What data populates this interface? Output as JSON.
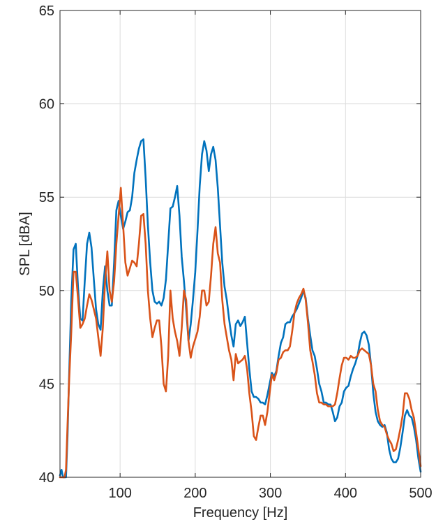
{
  "chart_data": {
    "type": "line",
    "title": "",
    "xlabel": "Frequency [Hz]",
    "ylabel": "SPL [dBA]",
    "xlim": [
      20,
      500
    ],
    "ylim": [
      40,
      65
    ],
    "x_ticks": [
      100,
      200,
      300,
      400,
      500
    ],
    "y_ticks": [
      40,
      45,
      50,
      55,
      60,
      65
    ],
    "x_tick_labels": [
      "100",
      "200",
      "300",
      "400",
      "500"
    ],
    "y_tick_labels": [
      "40",
      "45",
      "50",
      "55",
      "60",
      "65"
    ],
    "grid": true,
    "legend": "none",
    "series": [
      {
        "color": "#0072BD",
        "points": [
          [
            20,
            40.1
          ],
          [
            22,
            40.4
          ],
          [
            24,
            40.0
          ],
          [
            26,
            40.0
          ],
          [
            28,
            40.0
          ],
          [
            30,
            42.2
          ],
          [
            32,
            45.2
          ],
          [
            35,
            49.5
          ],
          [
            38,
            52.2
          ],
          [
            41,
            52.5
          ],
          [
            44,
            50.2
          ],
          [
            47,
            48.5
          ],
          [
            50,
            48.4
          ],
          [
            53,
            50.5
          ],
          [
            56,
            52.5
          ],
          [
            59,
            53.1
          ],
          [
            62,
            52.3
          ],
          [
            65,
            50.6
          ],
          [
            68,
            49.0
          ],
          [
            71,
            48.2
          ],
          [
            74,
            47.9
          ],
          [
            77,
            50.0
          ],
          [
            80,
            51.3
          ],
          [
            83,
            50.0
          ],
          [
            86,
            49.2
          ],
          [
            89,
            49.2
          ],
          [
            92,
            51.5
          ],
          [
            95,
            54.3
          ],
          [
            98,
            54.8
          ],
          [
            101,
            54.0
          ],
          [
            104,
            53.3
          ],
          [
            107,
            53.7
          ],
          [
            110,
            54.2
          ],
          [
            113,
            54.3
          ],
          [
            116,
            55.0
          ],
          [
            119,
            56.3
          ],
          [
            122,
            57.0
          ],
          [
            125,
            57.6
          ],
          [
            128,
            58.0
          ],
          [
            131,
            58.1
          ],
          [
            134,
            56.0
          ],
          [
            137,
            53.5
          ],
          [
            140,
            51.5
          ],
          [
            143,
            50.0
          ],
          [
            146,
            49.4
          ],
          [
            149,
            49.3
          ],
          [
            152,
            49.4
          ],
          [
            155,
            49.2
          ],
          [
            158,
            49.6
          ],
          [
            161,
            50.6
          ],
          [
            164,
            52.5
          ],
          [
            167,
            54.4
          ],
          [
            170,
            54.5
          ],
          [
            173,
            55.0
          ],
          [
            176,
            55.6
          ],
          [
            179,
            54.0
          ],
          [
            182,
            51.8
          ],
          [
            185,
            50.5
          ],
          [
            188,
            49.0
          ],
          [
            191,
            47.3
          ],
          [
            194,
            48.2
          ],
          [
            197,
            49.5
          ],
          [
            200,
            51.0
          ],
          [
            203,
            53.2
          ],
          [
            206,
            55.6
          ],
          [
            209,
            57.3
          ],
          [
            212,
            58.0
          ],
          [
            215,
            57.5
          ],
          [
            218,
            56.4
          ],
          [
            221,
            57.3
          ],
          [
            224,
            57.7
          ],
          [
            227,
            57.0
          ],
          [
            230,
            55.5
          ],
          [
            233,
            53.5
          ],
          [
            236,
            51.5
          ],
          [
            239,
            50.2
          ],
          [
            242,
            49.5
          ],
          [
            245,
            48.5
          ],
          [
            248,
            47.6
          ],
          [
            251,
            47.0
          ],
          [
            254,
            48.2
          ],
          [
            257,
            48.4
          ],
          [
            260,
            48.1
          ],
          [
            263,
            48.3
          ],
          [
            266,
            48.6
          ],
          [
            269,
            47.2
          ],
          [
            272,
            45.8
          ],
          [
            275,
            44.6
          ],
          [
            278,
            44.3
          ],
          [
            281,
            44.3
          ],
          [
            284,
            44.2
          ],
          [
            287,
            44.0
          ],
          [
            290,
            44.0
          ],
          [
            293,
            43.9
          ],
          [
            296,
            44.4
          ],
          [
            299,
            45.0
          ],
          [
            302,
            45.6
          ],
          [
            305,
            45.4
          ],
          [
            308,
            45.7
          ],
          [
            311,
            46.5
          ],
          [
            314,
            47.2
          ],
          [
            317,
            47.5
          ],
          [
            320,
            48.2
          ],
          [
            323,
            48.3
          ],
          [
            326,
            48.3
          ],
          [
            329,
            48.6
          ],
          [
            332,
            48.8
          ],
          [
            335,
            49.0
          ],
          [
            338,
            49.3
          ],
          [
            341,
            49.6
          ],
          [
            344,
            50.0
          ],
          [
            347,
            49.6
          ],
          [
            350,
            48.5
          ],
          [
            353,
            47.6
          ],
          [
            356,
            46.8
          ],
          [
            359,
            46.5
          ],
          [
            362,
            45.8
          ],
          [
            365,
            45.0
          ],
          [
            368,
            44.6
          ],
          [
            371,
            44.0
          ],
          [
            374,
            44.0
          ],
          [
            377,
            43.9
          ],
          [
            380,
            43.9
          ],
          [
            383,
            43.5
          ],
          [
            386,
            43.0
          ],
          [
            389,
            43.2
          ],
          [
            392,
            43.8
          ],
          [
            395,
            44.0
          ],
          [
            398,
            44.6
          ],
          [
            401,
            44.8
          ],
          [
            404,
            44.9
          ],
          [
            407,
            45.4
          ],
          [
            410,
            45.8
          ],
          [
            413,
            46.1
          ],
          [
            416,
            46.5
          ],
          [
            419,
            47.2
          ],
          [
            422,
            47.7
          ],
          [
            425,
            47.8
          ],
          [
            428,
            47.6
          ],
          [
            431,
            47.1
          ],
          [
            434,
            46.0
          ],
          [
            437,
            44.5
          ],
          [
            440,
            43.5
          ],
          [
            443,
            43.0
          ],
          [
            446,
            42.8
          ],
          [
            449,
            42.7
          ],
          [
            452,
            42.8
          ],
          [
            455,
            42.4
          ],
          [
            458,
            41.5
          ],
          [
            461,
            41.0
          ],
          [
            464,
            40.8
          ],
          [
            467,
            40.8
          ],
          [
            470,
            41.0
          ],
          [
            473,
            41.6
          ],
          [
            476,
            42.4
          ],
          [
            479,
            43.3
          ],
          [
            482,
            43.6
          ],
          [
            485,
            43.3
          ],
          [
            488,
            43.2
          ],
          [
            491,
            42.7
          ],
          [
            494,
            42.0
          ],
          [
            497,
            41.0
          ],
          [
            500,
            40.3
          ]
        ]
      },
      {
        "color": "#D95319",
        "points": [
          [
            20,
            40.0
          ],
          [
            22,
            40.0
          ],
          [
            24,
            40.0
          ],
          [
            26,
            40.0
          ],
          [
            28,
            40.4
          ],
          [
            30,
            42.8
          ],
          [
            32,
            45.0
          ],
          [
            35,
            47.8
          ],
          [
            38,
            51.0
          ],
          [
            41,
            51.0
          ],
          [
            44,
            49.6
          ],
          [
            47,
            48.0
          ],
          [
            50,
            48.2
          ],
          [
            53,
            48.5
          ],
          [
            56,
            49.2
          ],
          [
            59,
            49.8
          ],
          [
            62,
            49.5
          ],
          [
            65,
            49.0
          ],
          [
            68,
            48.5
          ],
          [
            71,
            47.5
          ],
          [
            74,
            46.5
          ],
          [
            77,
            48.0
          ],
          [
            80,
            50.5
          ],
          [
            83,
            52.1
          ],
          [
            86,
            50.0
          ],
          [
            89,
            49.4
          ],
          [
            92,
            50.5
          ],
          [
            95,
            52.5
          ],
          [
            98,
            54.0
          ],
          [
            101,
            55.5
          ],
          [
            104,
            53.5
          ],
          [
            107,
            51.5
          ],
          [
            110,
            50.8
          ],
          [
            113,
            51.2
          ],
          [
            116,
            51.6
          ],
          [
            119,
            51.5
          ],
          [
            122,
            51.3
          ],
          [
            125,
            52.5
          ],
          [
            128,
            54.0
          ],
          [
            131,
            54.1
          ],
          [
            134,
            52.5
          ],
          [
            137,
            50.0
          ],
          [
            140,
            48.5
          ],
          [
            143,
            47.5
          ],
          [
            146,
            48.0
          ],
          [
            149,
            48.4
          ],
          [
            152,
            48.4
          ],
          [
            155,
            47.0
          ],
          [
            158,
            45.0
          ],
          [
            161,
            44.6
          ],
          [
            164,
            46.5
          ],
          [
            167,
            50.0
          ],
          [
            170,
            48.5
          ],
          [
            173,
            47.8
          ],
          [
            176,
            47.3
          ],
          [
            179,
            46.5
          ],
          [
            182,
            48.0
          ],
          [
            185,
            50.0
          ],
          [
            188,
            49.5
          ],
          [
            191,
            47.3
          ],
          [
            194,
            46.4
          ],
          [
            197,
            47.0
          ],
          [
            200,
            47.4
          ],
          [
            203,
            47.8
          ],
          [
            206,
            48.6
          ],
          [
            209,
            50.0
          ],
          [
            212,
            50.0
          ],
          [
            215,
            49.2
          ],
          [
            218,
            49.4
          ],
          [
            221,
            50.8
          ],
          [
            224,
            52.5
          ],
          [
            227,
            53.4
          ],
          [
            230,
            52.0
          ],
          [
            233,
            51.5
          ],
          [
            236,
            49.5
          ],
          [
            239,
            48.2
          ],
          [
            242,
            47.5
          ],
          [
            245,
            46.8
          ],
          [
            248,
            46.3
          ],
          [
            251,
            45.2
          ],
          [
            254,
            46.6
          ],
          [
            257,
            46.1
          ],
          [
            260,
            46.2
          ],
          [
            263,
            46.3
          ],
          [
            266,
            46.5
          ],
          [
            269,
            45.8
          ],
          [
            272,
            44.5
          ],
          [
            275,
            43.5
          ],
          [
            278,
            42.2
          ],
          [
            281,
            42.0
          ],
          [
            284,
            42.7
          ],
          [
            287,
            43.3
          ],
          [
            290,
            43.3
          ],
          [
            293,
            42.8
          ],
          [
            296,
            43.5
          ],
          [
            299,
            44.5
          ],
          [
            302,
            45.5
          ],
          [
            305,
            45.2
          ],
          [
            308,
            45.6
          ],
          [
            311,
            46.3
          ],
          [
            314,
            46.4
          ],
          [
            317,
            46.7
          ],
          [
            320,
            46.8
          ],
          [
            323,
            46.8
          ],
          [
            326,
            47.0
          ],
          [
            329,
            47.8
          ],
          [
            332,
            48.8
          ],
          [
            335,
            49.3
          ],
          [
            338,
            49.6
          ],
          [
            341,
            49.8
          ],
          [
            344,
            50.1
          ],
          [
            347,
            49.5
          ],
          [
            350,
            48.3
          ],
          [
            353,
            46.8
          ],
          [
            356,
            46.2
          ],
          [
            359,
            45.5
          ],
          [
            362,
            44.5
          ],
          [
            365,
            44.0
          ],
          [
            368,
            44.0
          ],
          [
            371,
            43.9
          ],
          [
            374,
            43.9
          ],
          [
            377,
            43.8
          ],
          [
            380,
            43.8
          ],
          [
            383,
            43.8
          ],
          [
            386,
            43.9
          ],
          [
            389,
            44.5
          ],
          [
            392,
            45.3
          ],
          [
            395,
            46.0
          ],
          [
            398,
            46.4
          ],
          [
            401,
            46.4
          ],
          [
            404,
            46.3
          ],
          [
            407,
            46.5
          ],
          [
            410,
            46.4
          ],
          [
            413,
            46.4
          ],
          [
            416,
            46.5
          ],
          [
            419,
            46.8
          ],
          [
            422,
            46.9
          ],
          [
            425,
            46.8
          ],
          [
            428,
            46.7
          ],
          [
            431,
            46.6
          ],
          [
            434,
            46.0
          ],
          [
            437,
            45.0
          ],
          [
            440,
            44.6
          ],
          [
            443,
            43.6
          ],
          [
            446,
            43.0
          ],
          [
            449,
            42.8
          ],
          [
            452,
            42.7
          ],
          [
            455,
            42.3
          ],
          [
            458,
            42.0
          ],
          [
            461,
            41.8
          ],
          [
            464,
            41.4
          ],
          [
            467,
            41.5
          ],
          [
            470,
            42.0
          ],
          [
            473,
            42.6
          ],
          [
            476,
            43.3
          ],
          [
            479,
            44.5
          ],
          [
            482,
            44.5
          ],
          [
            485,
            44.2
          ],
          [
            488,
            43.6
          ],
          [
            491,
            43.2
          ],
          [
            494,
            42.4
          ],
          [
            497,
            41.5
          ],
          [
            500,
            40.6
          ]
        ]
      }
    ]
  }
}
